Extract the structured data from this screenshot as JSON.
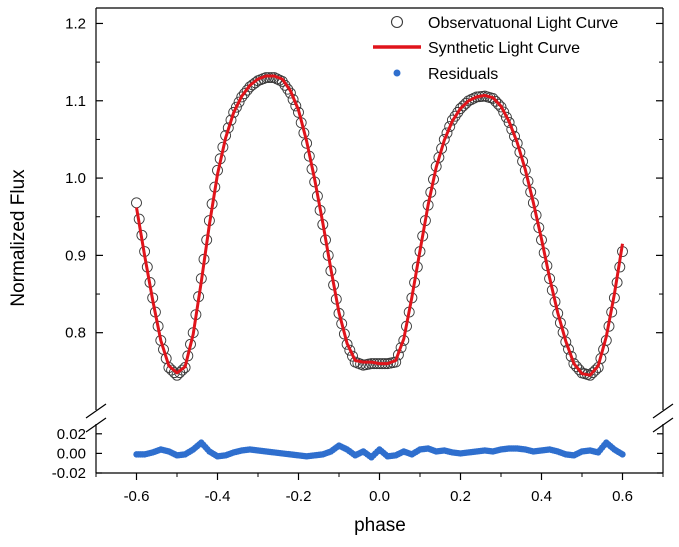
{
  "chart_data": {
    "type": "scatter",
    "title": "",
    "xlabel": "phase",
    "ylabel": "Normalized Flux",
    "xlim": [
      -0.7,
      0.7
    ],
    "ylim_main": [
      0.7,
      1.22
    ],
    "ylim_residual": [
      -0.02,
      0.03
    ],
    "axis_break": true,
    "x_ticks": [
      -0.6,
      -0.4,
      -0.2,
      0.0,
      0.2,
      0.4,
      0.6
    ],
    "x_tick_labels": [
      "-0.6",
      "-0.4",
      "-0.2",
      "0.0",
      "0.2",
      "0.4",
      "0.6"
    ],
    "y_ticks_main": [
      0.8,
      0.9,
      1.0,
      1.1,
      1.2
    ],
    "y_tick_labels_main": [
      "0.8",
      "0.9",
      "1.0",
      "1.1",
      "1.2"
    ],
    "y_ticks_residual": [
      0.02,
      0.0,
      -0.02
    ],
    "y_tick_labels_residual": [
      "0.02",
      "0.00",
      "-0.02"
    ],
    "legend": {
      "position": "top-right",
      "entries": [
        {
          "label": "Observatuonal Light Curve",
          "marker": "open-circle",
          "color": "#3a3a3a"
        },
        {
          "label": "Synthetic Light Curve",
          "marker": "line",
          "color": "#e0141b"
        },
        {
          "label": "Residuals",
          "marker": "filled-circle",
          "color": "#2f6fce"
        }
      ]
    },
    "series": [
      {
        "name": "Observatuonal Light Curve",
        "style": "open-circle",
        "color": "#3a3a3a",
        "x": [
          -0.6,
          -0.58,
          -0.56,
          -0.54,
          -0.52,
          -0.5,
          -0.48,
          -0.46,
          -0.44,
          -0.42,
          -0.4,
          -0.38,
          -0.36,
          -0.34,
          -0.32,
          -0.3,
          -0.28,
          -0.26,
          -0.24,
          -0.22,
          -0.2,
          -0.18,
          -0.16,
          -0.14,
          -0.12,
          -0.1,
          -0.08,
          -0.06,
          -0.04,
          -0.02,
          0.0,
          0.02,
          0.04,
          0.06,
          0.08,
          0.1,
          0.12,
          0.14,
          0.16,
          0.18,
          0.2,
          0.22,
          0.24,
          0.26,
          0.28,
          0.3,
          0.32,
          0.34,
          0.36,
          0.38,
          0.4,
          0.42,
          0.44,
          0.46,
          0.48,
          0.5,
          0.52,
          0.54,
          0.56,
          0.58,
          0.6
        ],
        "y": [
          0.968,
          0.905,
          0.845,
          0.79,
          0.755,
          0.745,
          0.755,
          0.8,
          0.87,
          0.945,
          1.01,
          1.055,
          1.085,
          1.105,
          1.118,
          1.126,
          1.13,
          1.13,
          1.125,
          1.11,
          1.085,
          1.045,
          0.995,
          0.94,
          0.88,
          0.825,
          0.785,
          0.762,
          0.758,
          0.76,
          0.76,
          0.76,
          0.762,
          0.79,
          0.845,
          0.905,
          0.965,
          1.015,
          1.05,
          1.075,
          1.09,
          1.1,
          1.105,
          1.106,
          1.103,
          1.092,
          1.072,
          1.045,
          1.01,
          0.968,
          0.92,
          0.87,
          0.825,
          0.788,
          0.76,
          0.748,
          0.745,
          0.755,
          0.79,
          0.845,
          0.905
        ]
      },
      {
        "name": "Synthetic Light Curve",
        "style": "line",
        "color": "#e0141b",
        "x": [
          -0.6,
          -0.58,
          -0.56,
          -0.54,
          -0.52,
          -0.5,
          -0.48,
          -0.46,
          -0.44,
          -0.42,
          -0.4,
          -0.38,
          -0.36,
          -0.34,
          -0.32,
          -0.3,
          -0.28,
          -0.26,
          -0.24,
          -0.22,
          -0.2,
          -0.18,
          -0.16,
          -0.14,
          -0.12,
          -0.1,
          -0.08,
          -0.06,
          -0.04,
          -0.02,
          0.0,
          0.02,
          0.04,
          0.06,
          0.08,
          0.1,
          0.12,
          0.14,
          0.16,
          0.18,
          0.2,
          0.22,
          0.24,
          0.26,
          0.28,
          0.3,
          0.32,
          0.34,
          0.36,
          0.38,
          0.4,
          0.42,
          0.44,
          0.46,
          0.48,
          0.5,
          0.52,
          0.54,
          0.56,
          0.58,
          0.6
        ],
        "y": [
          0.962,
          0.9,
          0.842,
          0.79,
          0.757,
          0.748,
          0.756,
          0.798,
          0.866,
          0.94,
          1.005,
          1.052,
          1.085,
          1.106,
          1.12,
          1.128,
          1.132,
          1.132,
          1.128,
          1.113,
          1.088,
          1.048,
          0.998,
          0.942,
          0.882,
          0.826,
          0.786,
          0.764,
          0.762,
          0.762,
          0.76,
          0.76,
          0.764,
          0.792,
          0.846,
          0.906,
          0.965,
          1.014,
          1.049,
          1.074,
          1.09,
          1.1,
          1.105,
          1.107,
          1.104,
          1.093,
          1.073,
          1.046,
          1.011,
          0.968,
          0.921,
          0.871,
          0.826,
          0.789,
          0.76,
          0.747,
          0.745,
          0.757,
          0.795,
          0.85,
          0.915
        ]
      },
      {
        "name": "Residuals",
        "style": "filled-circle",
        "color": "#2f6fce",
        "x": [
          -0.6,
          -0.58,
          -0.56,
          -0.54,
          -0.52,
          -0.5,
          -0.48,
          -0.46,
          -0.44,
          -0.42,
          -0.4,
          -0.38,
          -0.36,
          -0.34,
          -0.32,
          -0.3,
          -0.28,
          -0.26,
          -0.24,
          -0.22,
          -0.2,
          -0.18,
          -0.16,
          -0.14,
          -0.12,
          -0.1,
          -0.08,
          -0.06,
          -0.04,
          -0.02,
          0.0,
          0.02,
          0.04,
          0.06,
          0.08,
          0.1,
          0.12,
          0.14,
          0.16,
          0.18,
          0.2,
          0.22,
          0.24,
          0.26,
          0.28,
          0.3,
          0.32,
          0.34,
          0.36,
          0.38,
          0.4,
          0.42,
          0.44,
          0.46,
          0.48,
          0.5,
          0.52,
          0.54,
          0.56,
          0.58,
          0.6
        ],
        "y": [
          -0.001,
          -0.001,
          0.001,
          0.004,
          0.002,
          -0.002,
          -0.001,
          0.004,
          0.011,
          0.002,
          -0.003,
          -0.002,
          0.001,
          0.003,
          0.004,
          0.003,
          0.002,
          0.001,
          0.0,
          -0.001,
          -0.002,
          -0.003,
          -0.002,
          -0.001,
          0.002,
          0.008,
          0.004,
          -0.002,
          0.002,
          -0.004,
          0.004,
          -0.003,
          -0.002,
          0.002,
          -0.001,
          0.004,
          0.005,
          0.002,
          0.003,
          0.001,
          0.0,
          0.001,
          0.002,
          0.003,
          0.002,
          0.004,
          0.005,
          0.005,
          0.004,
          0.002,
          0.003,
          0.004,
          0.002,
          -0.001,
          -0.002,
          0.002,
          0.003,
          0.001,
          0.011,
          0.004,
          -0.001
        ]
      }
    ]
  }
}
